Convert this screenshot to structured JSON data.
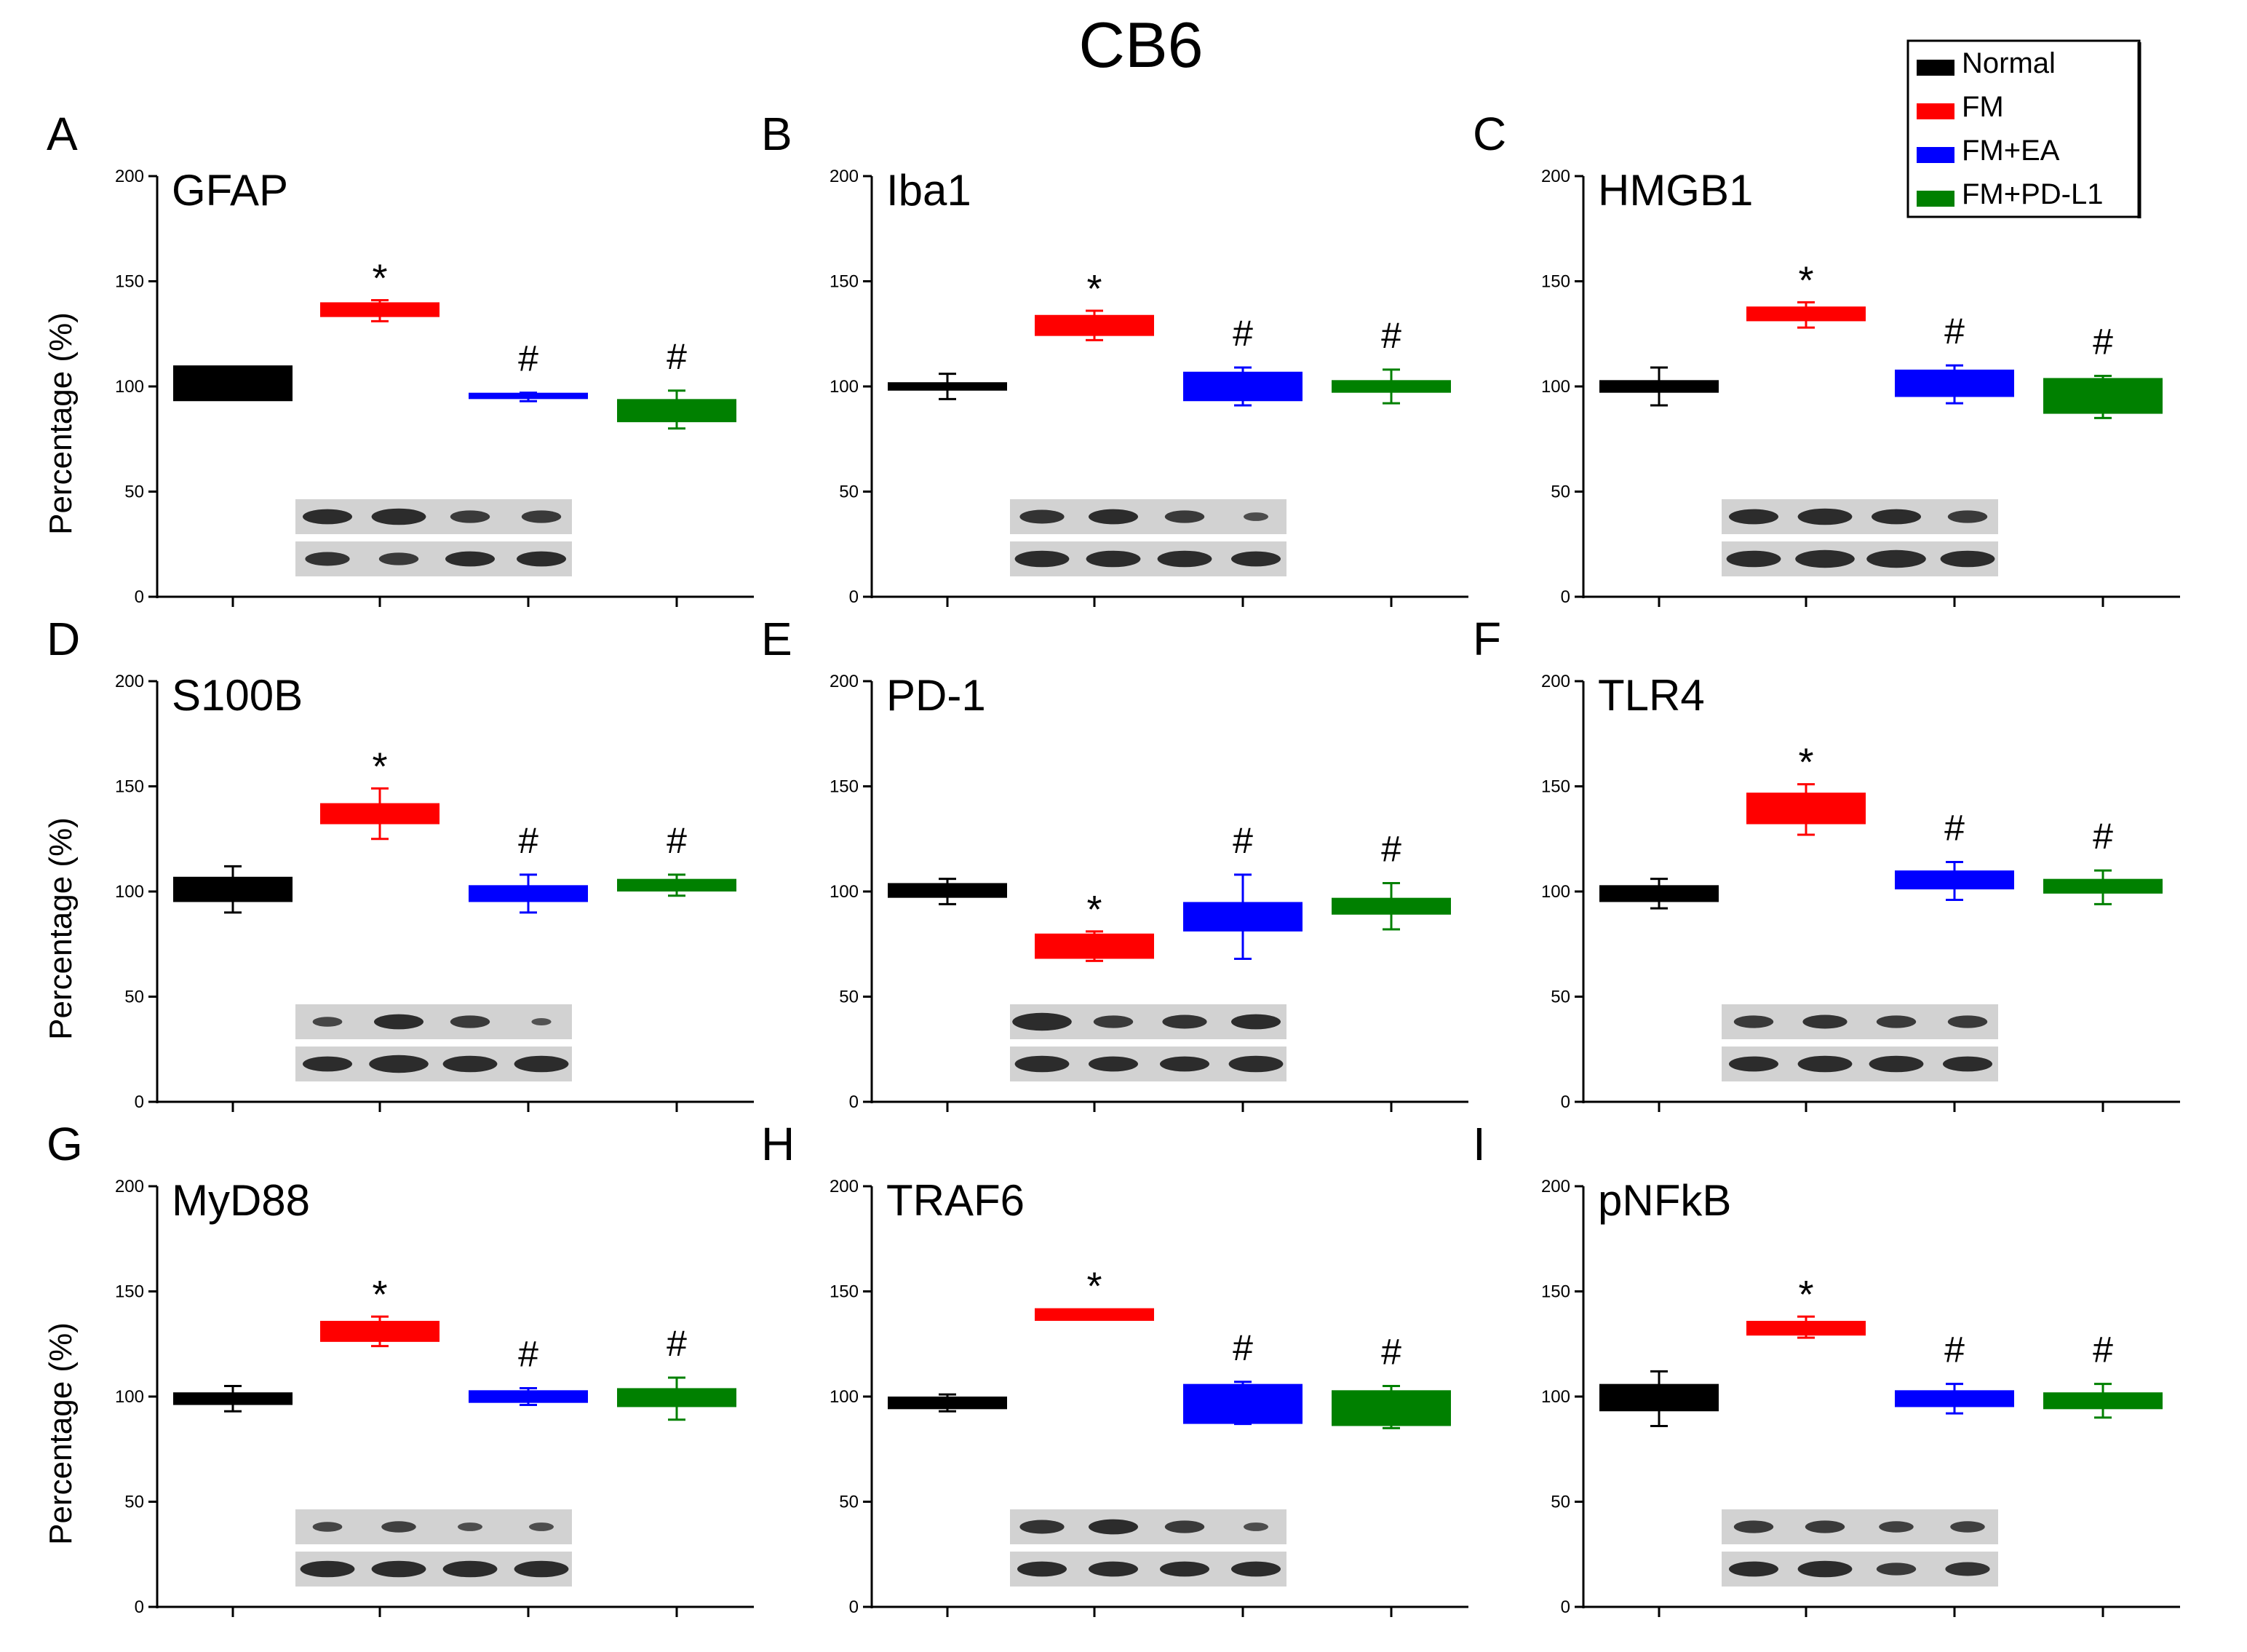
{
  "figure_title": "CB6",
  "legend": [
    {
      "label": "Normal",
      "color": "#000000"
    },
    {
      "label": "FM",
      "color": "#ff0000"
    },
    {
      "label": "FM+EA",
      "color": "#0000ff"
    },
    {
      "label": "FM+PD-L1",
      "color": "#008000"
    }
  ],
  "colors": [
    "#000000",
    "#ff0000",
    "#0000ff",
    "#008000"
  ],
  "y_axis_label": "Percentage (%)",
  "chart_data": [
    {
      "type": "bar",
      "panel": "A",
      "title": "GFAP",
      "ylim": [
        0,
        200
      ],
      "yticks": [
        0,
        50,
        100,
        150,
        200
      ],
      "series": [
        {
          "name": "Normal",
          "value": 102,
          "low": 93,
          "high": 110,
          "error": 5
        },
        {
          "name": "FM",
          "value": 136,
          "low": 133,
          "high": 140,
          "error": 5
        },
        {
          "name": "FM+EA",
          "value": 95,
          "low": 94,
          "high": 97,
          "error": 2
        },
        {
          "name": "FM+PD-L1",
          "value": 89,
          "low": 83,
          "high": 94,
          "error": 9
        }
      ],
      "markers": [
        "",
        "*",
        "#",
        "#"
      ],
      "blot_rows": [
        [
          1,
          1.1,
          0.8,
          0.8
        ],
        [
          0.9,
          0.8,
          1,
          1
        ]
      ]
    },
    {
      "type": "bar",
      "panel": "B",
      "title": "Iba1",
      "ylim": [
        0,
        200
      ],
      "yticks": [
        0,
        50,
        100,
        150,
        200
      ],
      "series": [
        {
          "name": "Normal",
          "value": 100,
          "low": 98,
          "high": 102,
          "error": 6
        },
        {
          "name": "FM",
          "value": 129,
          "low": 124,
          "high": 134,
          "error": 7
        },
        {
          "name": "FM+EA",
          "value": 100,
          "low": 93,
          "high": 107,
          "error": 9
        },
        {
          "name": "FM+PD-L1",
          "value": 100,
          "low": 97,
          "high": 103,
          "error": 8
        }
      ],
      "markers": [
        "",
        "*",
        "#",
        "#"
      ],
      "blot_rows": [
        [
          0.9,
          1,
          0.8,
          0.5
        ],
        [
          1.1,
          1.1,
          1.1,
          1
        ]
      ]
    },
    {
      "type": "bar",
      "panel": "C",
      "title": "HMGB1",
      "ylim": [
        0,
        200
      ],
      "yticks": [
        0,
        50,
        100,
        150,
        200
      ],
      "series": [
        {
          "name": "Normal",
          "value": 100,
          "low": 97,
          "high": 103,
          "error": 9
        },
        {
          "name": "FM",
          "value": 134,
          "low": 131,
          "high": 138,
          "error": 6
        },
        {
          "name": "FM+EA",
          "value": 101,
          "low": 95,
          "high": 108,
          "error": 9
        },
        {
          "name": "FM+PD-L1",
          "value": 95,
          "low": 87,
          "high": 104,
          "error": 10
        }
      ],
      "markers": [
        "",
        "*",
        "#",
        "#"
      ],
      "blot_rows": [
        [
          1,
          1.1,
          1,
          0.8
        ],
        [
          1.1,
          1.2,
          1.2,
          1.1
        ]
      ]
    },
    {
      "type": "bar",
      "panel": "D",
      "title": "S100B",
      "ylim": [
        0,
        200
      ],
      "yticks": [
        0,
        50,
        100,
        150,
        200
      ],
      "series": [
        {
          "name": "Normal",
          "value": 101,
          "low": 95,
          "high": 107,
          "error": 11
        },
        {
          "name": "FM",
          "value": 137,
          "low": 132,
          "high": 142,
          "error": 12
        },
        {
          "name": "FM+EA",
          "value": 99,
          "low": 95,
          "high": 103,
          "error": 9
        },
        {
          "name": "FM+PD-L1",
          "value": 103,
          "low": 100,
          "high": 106,
          "error": 5
        }
      ],
      "markers": [
        "",
        "*",
        "#",
        "#"
      ],
      "blot_rows": [
        [
          0.6,
          1,
          0.8,
          0.4
        ],
        [
          1,
          1.2,
          1.1,
          1.1
        ]
      ]
    },
    {
      "type": "bar",
      "panel": "E",
      "title": "PD-1",
      "ylim": [
        0,
        200
      ],
      "yticks": [
        0,
        50,
        100,
        150,
        200
      ],
      "series": [
        {
          "name": "Normal",
          "value": 100,
          "low": 97,
          "high": 104,
          "error": 6
        },
        {
          "name": "FM",
          "value": 74,
          "low": 68,
          "high": 80,
          "error": 7
        },
        {
          "name": "FM+EA",
          "value": 88,
          "low": 81,
          "high": 95,
          "error": 20
        },
        {
          "name": "FM+PD-L1",
          "value": 93,
          "low": 89,
          "high": 97,
          "error": 11
        }
      ],
      "markers": [
        "",
        "*",
        "#",
        "#"
      ],
      "blot_rows": [
        [
          1.2,
          0.8,
          0.9,
          1
        ],
        [
          1.1,
          1,
          1,
          1.1
        ]
      ]
    },
    {
      "type": "bar",
      "panel": "F",
      "title": "TLR4",
      "ylim": [
        0,
        200
      ],
      "yticks": [
        0,
        50,
        100,
        150,
        200
      ],
      "series": [
        {
          "name": "Normal",
          "value": 99,
          "low": 95,
          "high": 103,
          "error": 7
        },
        {
          "name": "FM",
          "value": 139,
          "low": 132,
          "high": 147,
          "error": 12
        },
        {
          "name": "FM+EA",
          "value": 105,
          "low": 101,
          "high": 110,
          "error": 9
        },
        {
          "name": "FM+PD-L1",
          "value": 102,
          "low": 99,
          "high": 106,
          "error": 8
        }
      ],
      "markers": [
        "",
        "*",
        "#",
        "#"
      ],
      "blot_rows": [
        [
          0.8,
          0.9,
          0.8,
          0.8
        ],
        [
          1,
          1.1,
          1.1,
          1
        ]
      ]
    },
    {
      "type": "bar",
      "panel": "G",
      "title": "MyD88",
      "ylim": [
        0,
        200
      ],
      "yticks": [
        0,
        50,
        100,
        150,
        200
      ],
      "series": [
        {
          "name": "Normal",
          "value": 99,
          "low": 96,
          "high": 102,
          "error": 6
        },
        {
          "name": "FM",
          "value": 131,
          "low": 126,
          "high": 136,
          "error": 7
        },
        {
          "name": "FM+EA",
          "value": 100,
          "low": 97,
          "high": 103,
          "error": 4
        },
        {
          "name": "FM+PD-L1",
          "value": 99,
          "low": 95,
          "high": 104,
          "error": 10
        }
      ],
      "markers": [
        "",
        "*",
        "#",
        "#"
      ],
      "blot_rows": [
        [
          0.6,
          0.7,
          0.5,
          0.5
        ],
        [
          1.1,
          1.1,
          1.1,
          1.1
        ]
      ]
    },
    {
      "type": "bar",
      "panel": "H",
      "title": "TRAF6",
      "ylim": [
        0,
        200
      ],
      "yticks": [
        0,
        50,
        100,
        150,
        200
      ],
      "series": [
        {
          "name": "Normal",
          "value": 97,
          "low": 94,
          "high": 100,
          "error": 4
        },
        {
          "name": "FM",
          "value": 139,
          "low": 136,
          "high": 142,
          "error": 2
        },
        {
          "name": "FM+EA",
          "value": 97,
          "low": 87,
          "high": 106,
          "error": 10
        },
        {
          "name": "FM+PD-L1",
          "value": 95,
          "low": 86,
          "high": 103,
          "error": 10
        }
      ],
      "markers": [
        "",
        "*",
        "#",
        "#"
      ],
      "blot_rows": [
        [
          0.9,
          1,
          0.8,
          0.5
        ],
        [
          1,
          1,
          1,
          1
        ]
      ]
    },
    {
      "type": "bar",
      "panel": "I",
      "title": "pNFkB",
      "ylim": [
        0,
        200
      ],
      "yticks": [
        0,
        50,
        100,
        150,
        200
      ],
      "series": [
        {
          "name": "Normal",
          "value": 99,
          "low": 93,
          "high": 106,
          "error": 13
        },
        {
          "name": "FM",
          "value": 133,
          "low": 129,
          "high": 136,
          "error": 5
        },
        {
          "name": "FM+EA",
          "value": 99,
          "low": 95,
          "high": 103,
          "error": 7
        },
        {
          "name": "FM+PD-L1",
          "value": 98,
          "low": 94,
          "high": 102,
          "error": 8
        }
      ],
      "markers": [
        "",
        "*",
        "#",
        "#"
      ],
      "blot_rows": [
        [
          0.8,
          0.8,
          0.7,
          0.7
        ],
        [
          1,
          1.1,
          0.8,
          0.9
        ]
      ]
    }
  ]
}
